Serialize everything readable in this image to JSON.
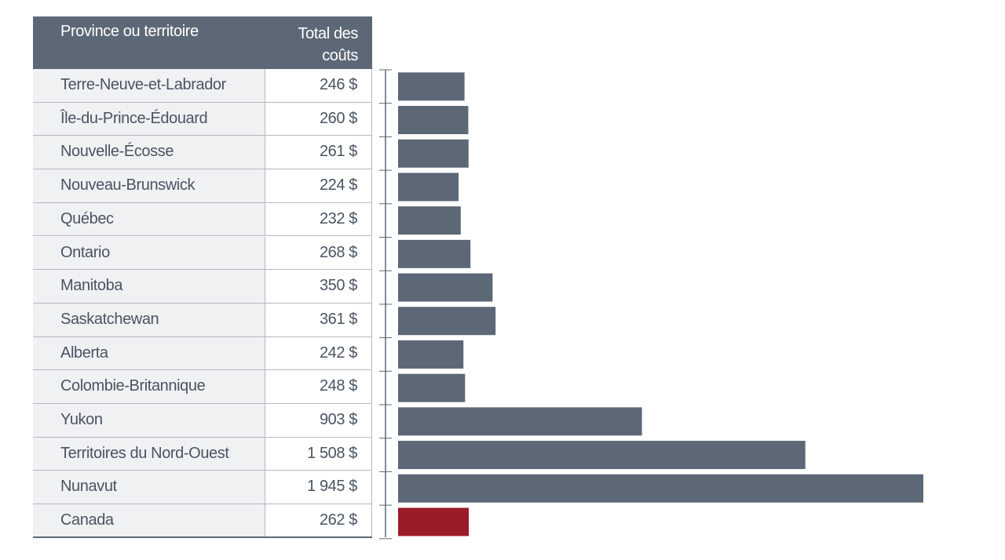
{
  "table": {
    "header_province": "Province ou territoire",
    "header_total": "Total des\ncoûts"
  },
  "colors": {
    "header_bg": "#5d6876",
    "bar_default": "#5d6876",
    "bar_highlight": "#9a1c28"
  },
  "chart_data": {
    "type": "bar",
    "orientation": "horizontal",
    "categories": [
      "Terre-Neuve-et-Labrador",
      "Île-du-Prince-Édouard",
      "Nouvelle-Écosse",
      "Nouveau-Brunswick",
      "Québec",
      "Ontario",
      "Manitoba",
      "Saskatchewan",
      "Alberta",
      "Colombie-Britannique",
      "Yukon",
      "Territoires du Nord-Ouest",
      "Nunavut",
      "Canada"
    ],
    "values": [
      246,
      260,
      261,
      224,
      232,
      268,
      350,
      361,
      242,
      248,
      903,
      1508,
      1945,
      262
    ],
    "value_labels": [
      "246 $",
      "260 $",
      "261 $",
      "224 $",
      "232 $",
      "268 $",
      "350 $",
      "361 $",
      "242 $",
      "248 $",
      "903 $",
      "1 508 $",
      "1 945 $",
      "262 $"
    ],
    "highlight": "Canada",
    "xlim": [
      0,
      1945
    ],
    "grid": false,
    "legend": "none"
  }
}
